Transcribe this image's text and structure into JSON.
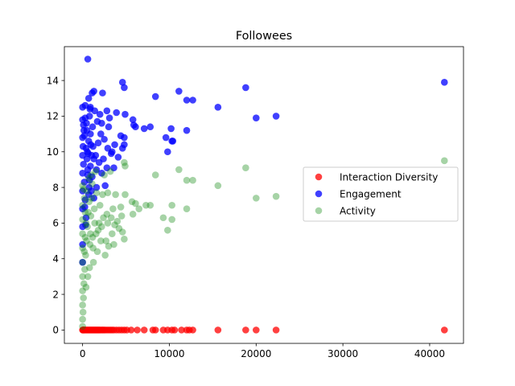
{
  "chart_data": {
    "type": "scatter",
    "title": "Followees",
    "xlabel": "",
    "ylabel": "",
    "xlim": [
      -2100,
      43900
    ],
    "ylim": [
      -0.75,
      15.9
    ],
    "xticks": [
      0,
      10000,
      20000,
      30000,
      40000
    ],
    "yticks": [
      0,
      2,
      4,
      6,
      8,
      10,
      12,
      14
    ],
    "xtick_labels": [
      "0",
      "10000",
      "20000",
      "30000",
      "40000"
    ],
    "ytick_labels": [
      "0",
      "2",
      "4",
      "6",
      "8",
      "10",
      "12",
      "14"
    ],
    "grid": false,
    "legend_position": "center-right",
    "series": [
      {
        "name": "Interaction Diversity",
        "color": "#ff0000",
        "alpha": 0.75,
        "points": [
          [
            0,
            0
          ],
          [
            50,
            0
          ],
          [
            100,
            0
          ],
          [
            150,
            0
          ],
          [
            200,
            0
          ],
          [
            300,
            0
          ],
          [
            400,
            0
          ],
          [
            500,
            0
          ],
          [
            600,
            0
          ],
          [
            700,
            0
          ],
          [
            800,
            0
          ],
          [
            900,
            0
          ],
          [
            1000,
            0
          ],
          [
            1100,
            0
          ],
          [
            1200,
            0
          ],
          [
            1300,
            0
          ],
          [
            1400,
            0
          ],
          [
            1500,
            0
          ],
          [
            1600,
            0
          ],
          [
            1700,
            0
          ],
          [
            1800,
            0
          ],
          [
            1900,
            0
          ],
          [
            2000,
            0
          ],
          [
            2150,
            0
          ],
          [
            2300,
            0
          ],
          [
            2450,
            0
          ],
          [
            2600,
            0
          ],
          [
            2800,
            0
          ],
          [
            3000,
            0
          ],
          [
            3200,
            0
          ],
          [
            3400,
            0
          ],
          [
            3600,
            0
          ],
          [
            3900,
            0
          ],
          [
            4200,
            0
          ],
          [
            4500,
            0
          ],
          [
            4800,
            0
          ],
          [
            5100,
            0
          ],
          [
            5600,
            0
          ],
          [
            6300,
            0
          ],
          [
            7100,
            0
          ],
          [
            8100,
            0
          ],
          [
            8400,
            0
          ],
          [
            9300,
            0
          ],
          [
            9800,
            0
          ],
          [
            10300,
            0
          ],
          [
            10600,
            0
          ],
          [
            11400,
            0
          ],
          [
            12000,
            0
          ],
          [
            12300,
            0
          ],
          [
            12700,
            0
          ],
          [
            15600,
            0
          ],
          [
            18800,
            0
          ],
          [
            20000,
            0
          ],
          [
            22300,
            0
          ],
          [
            41700,
            0
          ]
        ]
      },
      {
        "name": "Engagement",
        "color": "#0000ff",
        "alpha": 0.75,
        "points": [
          [
            600,
            15.2
          ],
          [
            4600,
            13.9
          ],
          [
            4800,
            13.6
          ],
          [
            41700,
            13.9
          ],
          [
            18800,
            13.6
          ],
          [
            11100,
            13.4
          ],
          [
            1300,
            13.4
          ],
          [
            1100,
            13.3
          ],
          [
            2300,
            13.3
          ],
          [
            8400,
            13.1
          ],
          [
            700,
            13.0
          ],
          [
            12000,
            12.9
          ],
          [
            12700,
            12.9
          ],
          [
            15600,
            12.5
          ],
          [
            900,
            12.5
          ],
          [
            0,
            12.5
          ],
          [
            300,
            12.6
          ],
          [
            2800,
            12.3
          ],
          [
            3900,
            12.2
          ],
          [
            4900,
            12.1
          ],
          [
            22300,
            12.0
          ],
          [
            20000,
            11.9
          ],
          [
            7800,
            11.4
          ],
          [
            6100,
            11.4
          ],
          [
            7100,
            11.3
          ],
          [
            5900,
            11.5
          ],
          [
            10200,
            11.3
          ],
          [
            12000,
            11.2
          ],
          [
            5800,
            11.8
          ],
          [
            1700,
            11.7
          ],
          [
            2200,
            11.6
          ],
          [
            3100,
            11.9
          ],
          [
            9600,
            10.8
          ],
          [
            10300,
            10.6
          ],
          [
            10400,
            10.6
          ],
          [
            9800,
            10.0
          ],
          [
            4800,
            10.8
          ],
          [
            4800,
            10.4
          ],
          [
            4600,
            10.2
          ],
          [
            3700,
            10.4
          ],
          [
            3300,
            9.9
          ],
          [
            2800,
            9.1
          ],
          [
            3600,
            9.1
          ],
          [
            2600,
            8.1
          ],
          [
            1600,
            8.0
          ],
          [
            1300,
            7.4
          ],
          [
            1000,
            7.8
          ],
          [
            800,
            8.4
          ],
          [
            600,
            9.0
          ],
          [
            400,
            10.2
          ],
          [
            200,
            10.9
          ],
          [
            100,
            11.5
          ],
          [
            300,
            11.9
          ],
          [
            500,
            11.2
          ],
          [
            700,
            10.6
          ],
          [
            900,
            11.0
          ],
          [
            1200,
            10.3
          ],
          [
            1500,
            9.8
          ],
          [
            1800,
            10.5
          ],
          [
            2100,
            11.0
          ],
          [
            2500,
            10.7
          ],
          [
            2900,
            10.2
          ],
          [
            3400,
            10.0
          ],
          [
            4100,
            9.7
          ],
          [
            4400,
            10.9
          ],
          [
            3000,
            11.4
          ],
          [
            2000,
            12.1
          ],
          [
            1400,
            12.3
          ],
          [
            800,
            12.0
          ],
          [
            0,
            11.8
          ],
          [
            0,
            10.8
          ],
          [
            0,
            9.8
          ],
          [
            0,
            8.8
          ],
          [
            0,
            7.8
          ],
          [
            0,
            6.8
          ],
          [
            0,
            5.8
          ],
          [
            0,
            4.8
          ],
          [
            0,
            3.8
          ],
          [
            100,
            9.3
          ],
          [
            200,
            8.3
          ],
          [
            300,
            7.3
          ],
          [
            400,
            6.3
          ],
          [
            500,
            9.6
          ],
          [
            600,
            8.7
          ],
          [
            700,
            7.6
          ],
          [
            900,
            9.2
          ],
          [
            1100,
            8.6
          ],
          [
            1300,
            9.6
          ],
          [
            1600,
            9.0
          ],
          [
            1900,
            9.4
          ],
          [
            2200,
            8.8
          ],
          [
            2400,
            9.6
          ],
          [
            50,
            10.3
          ],
          [
            150,
            11.2
          ],
          [
            250,
            6.9
          ],
          [
            350,
            5.9
          ],
          [
            450,
            11.6
          ],
          [
            550,
            10.0
          ],
          [
            650,
            9.9
          ],
          [
            750,
            8.0
          ],
          [
            850,
            12.4
          ],
          [
            950,
            10.4
          ],
          [
            1050,
            9.8
          ],
          [
            1150,
            11.4
          ]
        ]
      },
      {
        "name": "Activity",
        "color": "#008000",
        "alpha": 0.35,
        "points": [
          [
            41700,
            9.5
          ],
          [
            4800,
            9.4
          ],
          [
            18800,
            9.1
          ],
          [
            11100,
            9.0
          ],
          [
            8400,
            8.7
          ],
          [
            12000,
            8.4
          ],
          [
            12700,
            8.4
          ],
          [
            15600,
            8.1
          ],
          [
            22300,
            7.5
          ],
          [
            20000,
            7.4
          ],
          [
            4900,
            9.2
          ],
          [
            3200,
            8.9
          ],
          [
            2500,
            8.7
          ],
          [
            1500,
            8.9
          ],
          [
            1000,
            8.7
          ],
          [
            3800,
            7.6
          ],
          [
            4900,
            7.6
          ],
          [
            5700,
            7.2
          ],
          [
            6100,
            7.1
          ],
          [
            6500,
            6.8
          ],
          [
            7300,
            7.0
          ],
          [
            7800,
            7.0
          ],
          [
            5800,
            6.5
          ],
          [
            9300,
            6.3
          ],
          [
            10300,
            6.2
          ],
          [
            10300,
            7.0
          ],
          [
            12000,
            6.8
          ],
          [
            9800,
            5.6
          ],
          [
            4800,
            5.1
          ],
          [
            4600,
            5.5
          ],
          [
            3700,
            5.9
          ],
          [
            3300,
            6.3
          ],
          [
            2800,
            6.5
          ],
          [
            2400,
            6.3
          ],
          [
            3000,
            4.7
          ],
          [
            3600,
            4.8
          ],
          [
            2600,
            4.2
          ],
          [
            2100,
            5.0
          ],
          [
            1800,
            5.6
          ],
          [
            1400,
            6.0
          ],
          [
            1200,
            4.6
          ],
          [
            900,
            5.4
          ],
          [
            800,
            3.5
          ],
          [
            600,
            3.0
          ],
          [
            400,
            2.4
          ],
          [
            300,
            6.6
          ],
          [
            200,
            7.4
          ],
          [
            100,
            7.9
          ],
          [
            0,
            8.1
          ],
          [
            0,
            7.0
          ],
          [
            0,
            6.2
          ],
          [
            0,
            5.4
          ],
          [
            0,
            4.6
          ],
          [
            0,
            3.8
          ],
          [
            0,
            3.0
          ],
          [
            0,
            2.2
          ],
          [
            0,
            1.4
          ],
          [
            0,
            0.6
          ],
          [
            0,
            0.2
          ],
          [
            50,
            1.0
          ],
          [
            100,
            1.8
          ],
          [
            150,
            2.6
          ],
          [
            250,
            3.4
          ],
          [
            350,
            4.2
          ],
          [
            450,
            5.0
          ],
          [
            550,
            5.8
          ],
          [
            650,
            6.6
          ],
          [
            750,
            7.2
          ],
          [
            850,
            4.8
          ],
          [
            950,
            6.4
          ],
          [
            1050,
            7.4
          ],
          [
            1150,
            5.2
          ],
          [
            1250,
            3.8
          ],
          [
            1350,
            6.8
          ],
          [
            1550,
            5.4
          ],
          [
            1700,
            4.4
          ],
          [
            1900,
            6.0
          ],
          [
            2000,
            7.0
          ],
          [
            2200,
            5.8
          ],
          [
            2700,
            5.0
          ],
          [
            2900,
            6.0
          ],
          [
            3400,
            5.4
          ],
          [
            3500,
            6.8
          ],
          [
            4000,
            6.1
          ],
          [
            4200,
            5.7
          ],
          [
            4400,
            6.9
          ],
          [
            4500,
            6.4
          ],
          [
            1600,
            7.7
          ],
          [
            2300,
            7.6
          ],
          [
            2900,
            7.7
          ],
          [
            1100,
            8.2
          ],
          [
            700,
            8.5
          ],
          [
            500,
            7.8
          ],
          [
            400,
            6.0
          ],
          [
            300,
            5.2
          ],
          [
            200,
            4.4
          ]
        ]
      }
    ]
  }
}
